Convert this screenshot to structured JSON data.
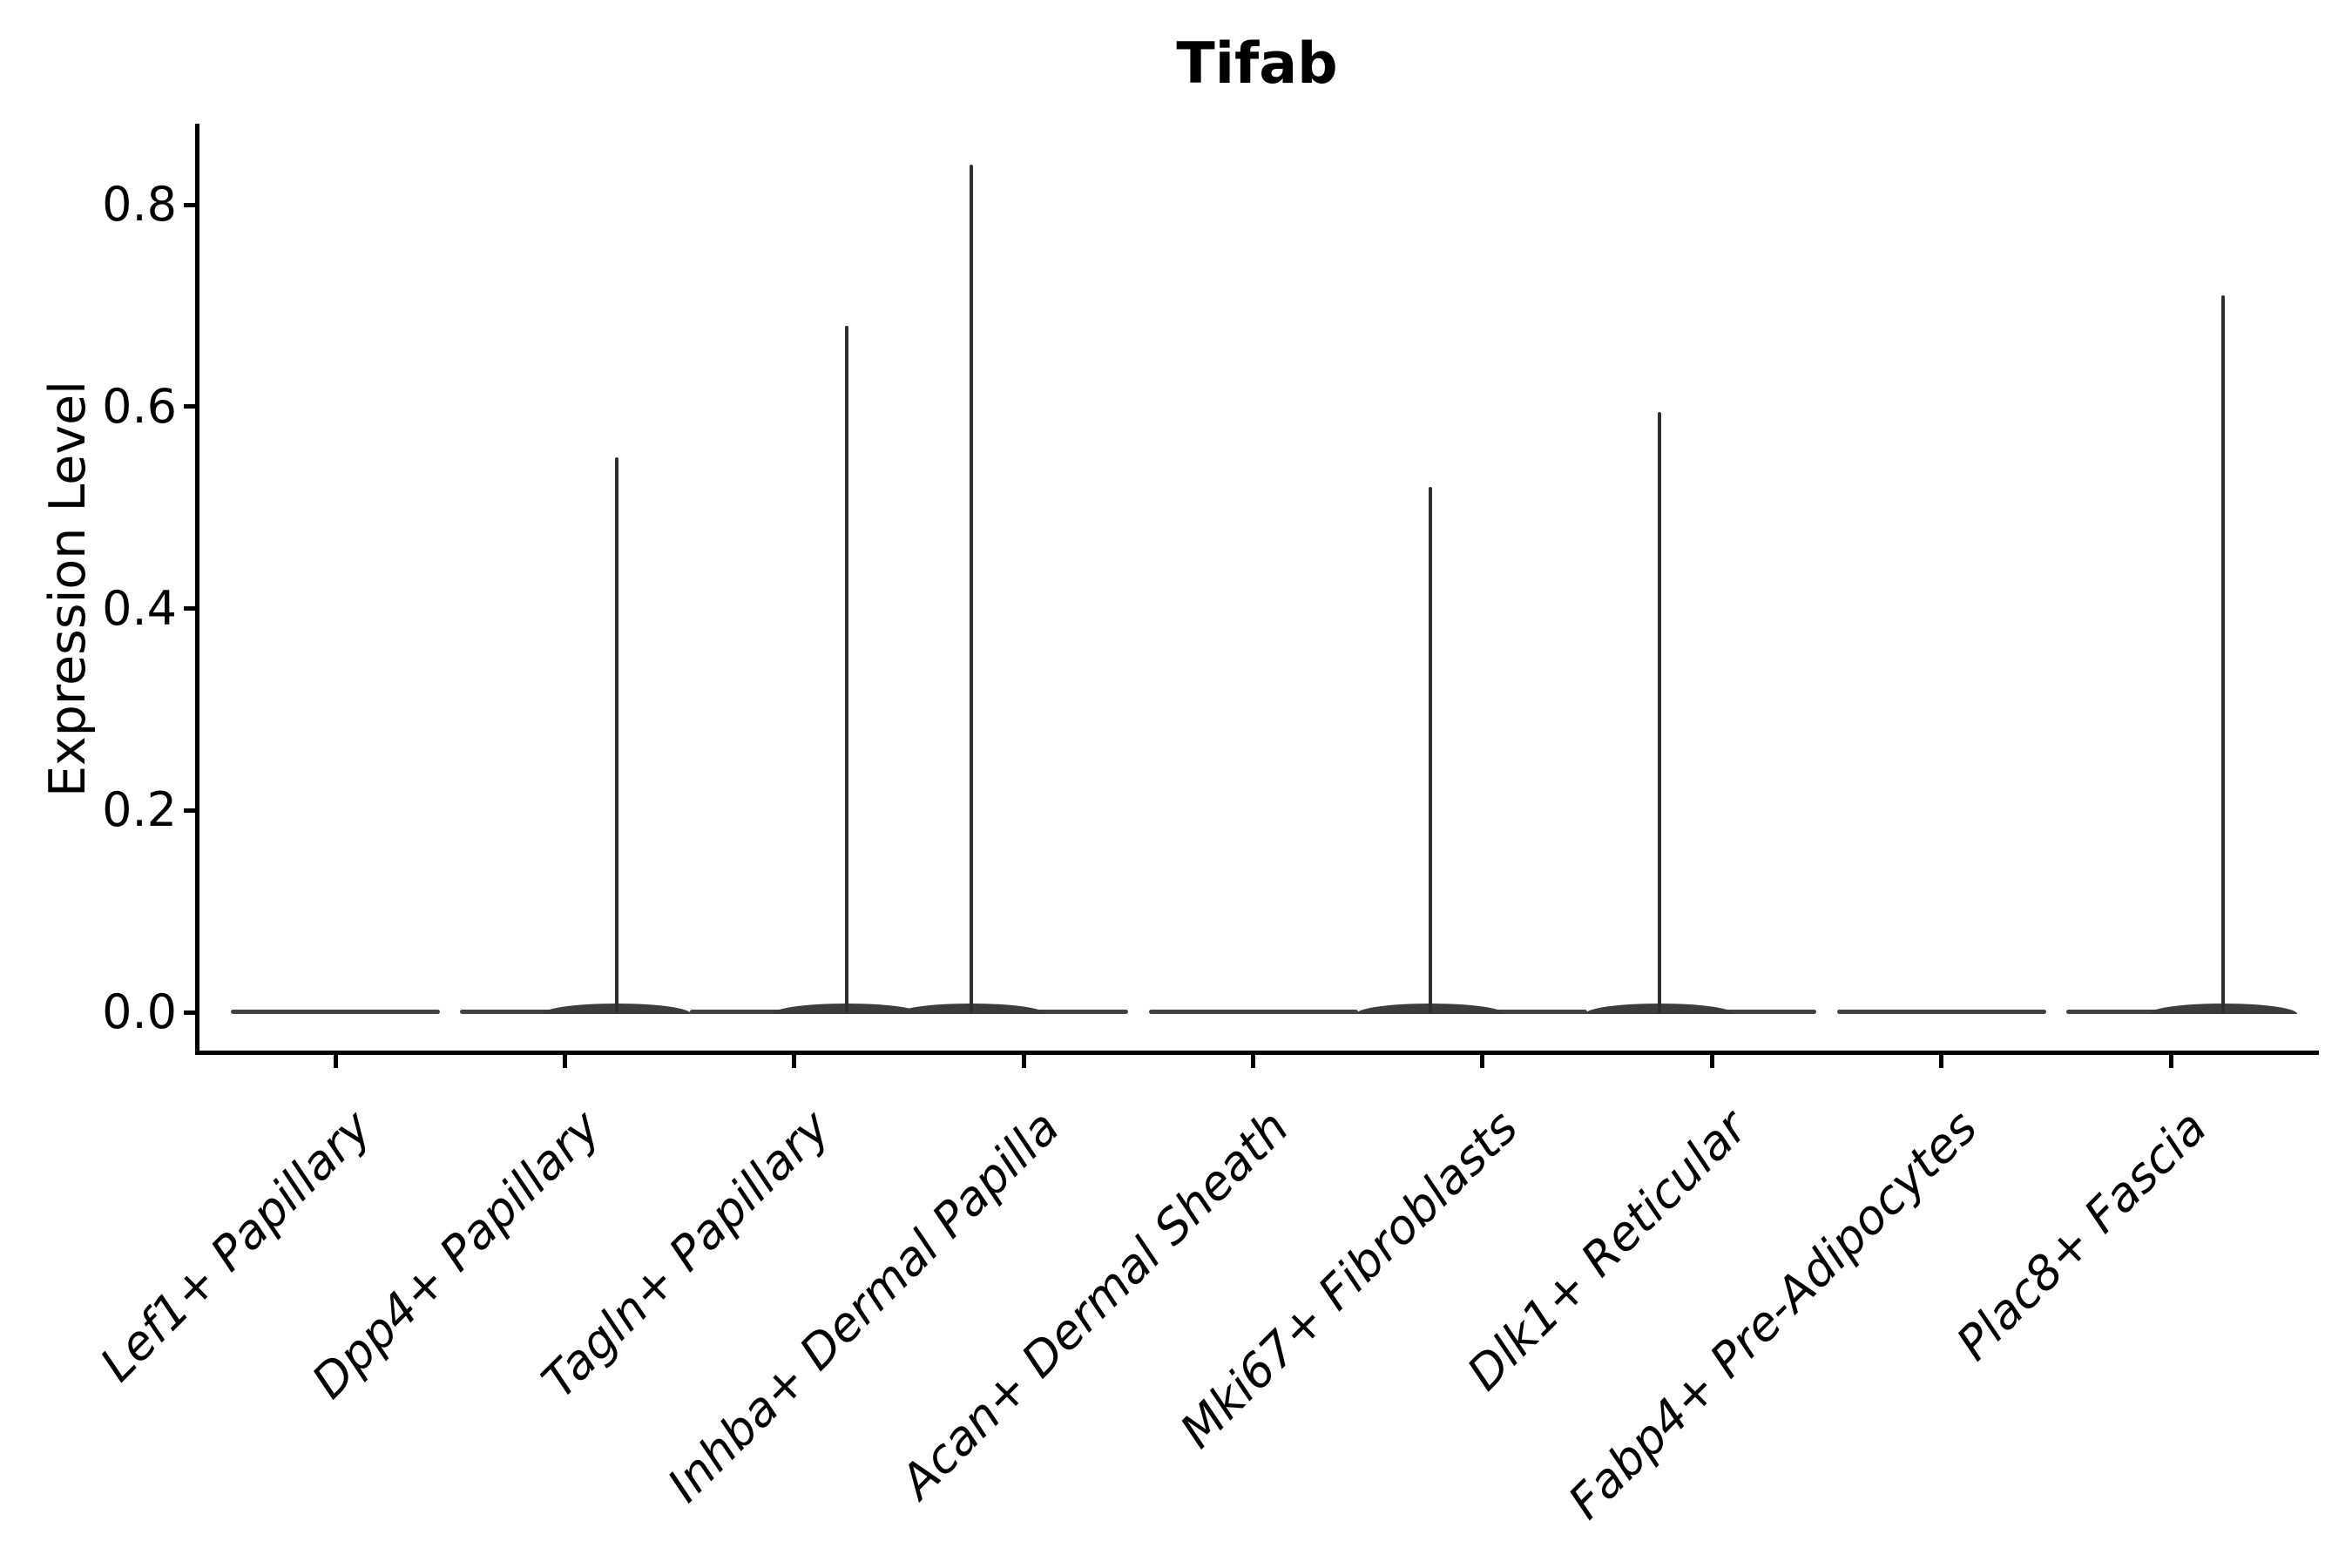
{
  "chart_data": {
    "type": "violin",
    "title": "Tifab",
    "xlabel": "",
    "ylabel": "Expression Level",
    "ylim": [
      0,
      0.88
    ],
    "yticks": [
      "0.0",
      "0.2",
      "0.4",
      "0.6",
      "0.8"
    ],
    "grid": false,
    "legend": null,
    "categories": [
      "Lef1+ Papillary",
      "Dpp4+ Papillary",
      "Tagln+ Papillary",
      "Inhba+ Dermal Papilla",
      "Acan+ Dermal Sheath",
      "Mki67+ Fibroblasts",
      "Dlk1+ Reticular",
      "Fabp4+ Pre-Adipocytes",
      "Plac8+ Fascia"
    ],
    "series": [
      {
        "name": "Lef1+ Papillary",
        "baseline_value": 0.0,
        "max_expression": 0.0,
        "spike_side": null
      },
      {
        "name": "Dpp4+ Papillary",
        "baseline_value": 0.0,
        "max_expression": 0.55,
        "spike_side": "right"
      },
      {
        "name": "Tagln+ Papillary",
        "baseline_value": 0.0,
        "max_expression": 0.68,
        "spike_side": "right"
      },
      {
        "name": "Inhba+ Dermal Papilla",
        "baseline_value": 0.0,
        "max_expression": 0.84,
        "spike_side": "left"
      },
      {
        "name": "Acan+ Dermal Sheath",
        "baseline_value": 0.0,
        "max_expression": 0.0,
        "spike_side": null
      },
      {
        "name": "Mki67+ Fibroblasts",
        "baseline_value": 0.0,
        "max_expression": 0.52,
        "spike_side": "left"
      },
      {
        "name": "Dlk1+ Reticular",
        "baseline_value": 0.0,
        "max_expression": 0.595,
        "spike_side": "left"
      },
      {
        "name": "Fabp4+ Pre-Adipocytes",
        "baseline_value": 0.0,
        "max_expression": 0.0,
        "spike_side": null
      },
      {
        "name": "Plac8+ Fascia",
        "baseline_value": 0.0,
        "max_expression": 0.71,
        "spike_side": "right"
      }
    ]
  },
  "colors": {
    "background": "#ffffff",
    "axis": "#000000",
    "violin_stroke": "#424242",
    "spike_stroke": "#2e2e2e",
    "text": "#000000"
  }
}
